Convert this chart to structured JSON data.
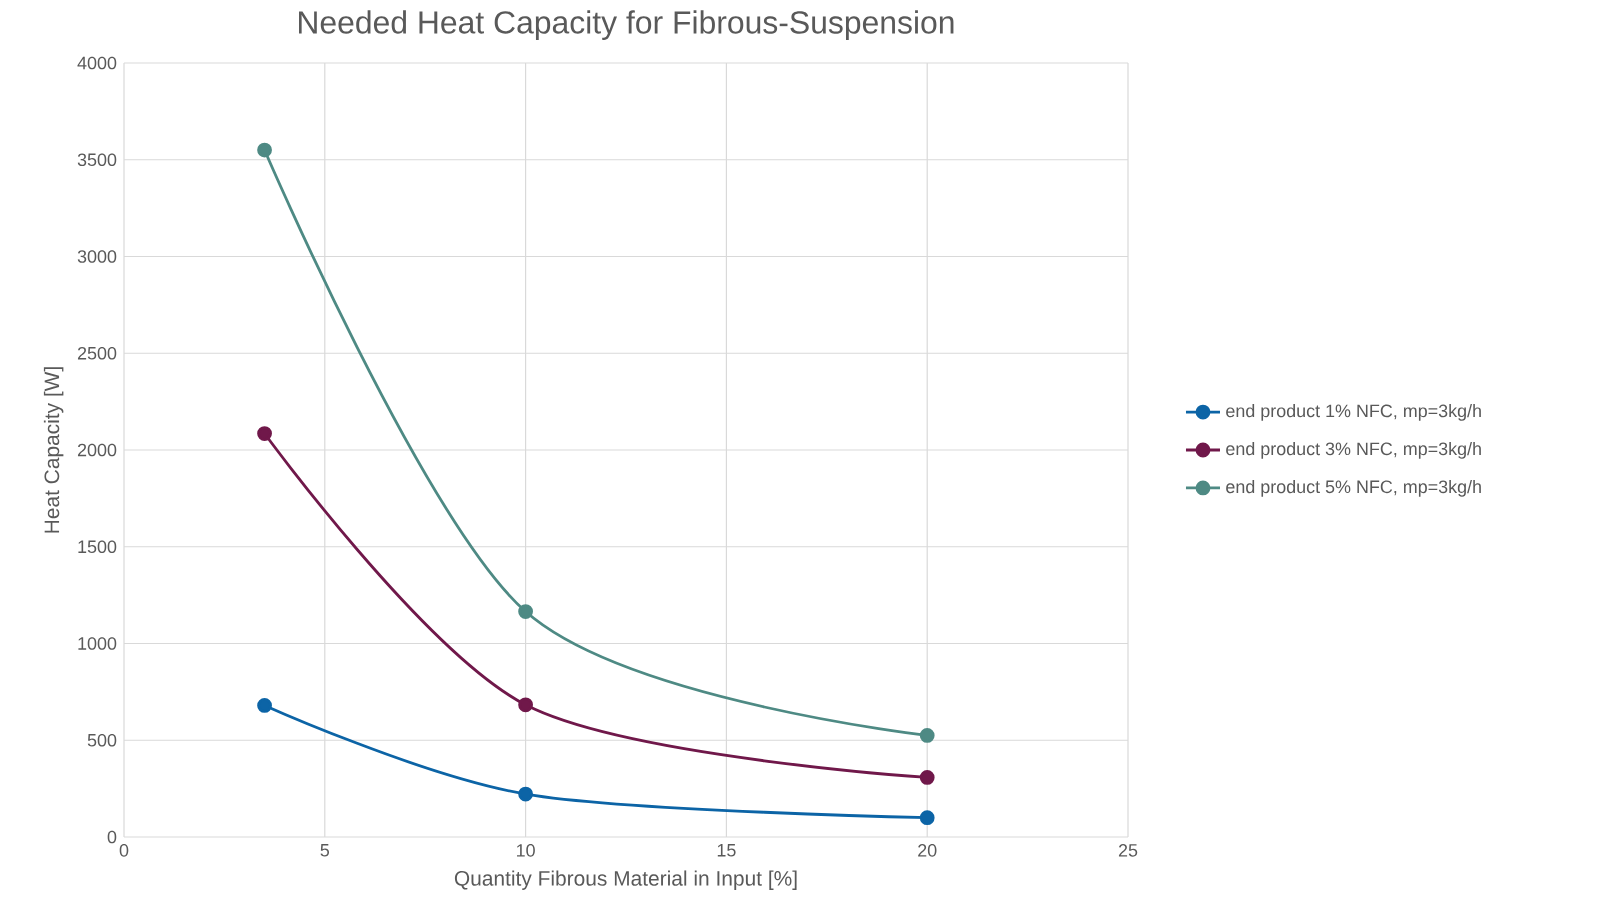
{
  "chart_data": {
    "type": "line",
    "title": "Needed Heat Capacity for Fibrous-Suspension",
    "xlabel": "Quantity Fibrous Material in Input [%]",
    "ylabel": "Heat Capacity [W]",
    "x": [
      3.5,
      10,
      20
    ],
    "series": [
      {
        "name": "end product 1% NFC, mp=3kg/h",
        "color": "#0c64a6",
        "values": [
          680,
          222,
          100
        ]
      },
      {
        "name": "end product 3% NFC, mp=3kg/h",
        "color": "#70184a",
        "values": [
          2085,
          683,
          308
        ]
      },
      {
        "name": "end product 5% NFC, mp=3kg/h",
        "color": "#4e8a84",
        "values": [
          3550,
          1165,
          525
        ]
      }
    ],
    "xlim": [
      0,
      25
    ],
    "xticks": [
      0,
      5,
      10,
      15,
      20,
      25
    ],
    "ylim": [
      0,
      4000
    ],
    "yticks": [
      0,
      500,
      1000,
      1500,
      2000,
      2500,
      3000,
      3500,
      4000
    ],
    "grid": true,
    "legend": "right",
    "marker": "circle",
    "line_style": "solid"
  }
}
